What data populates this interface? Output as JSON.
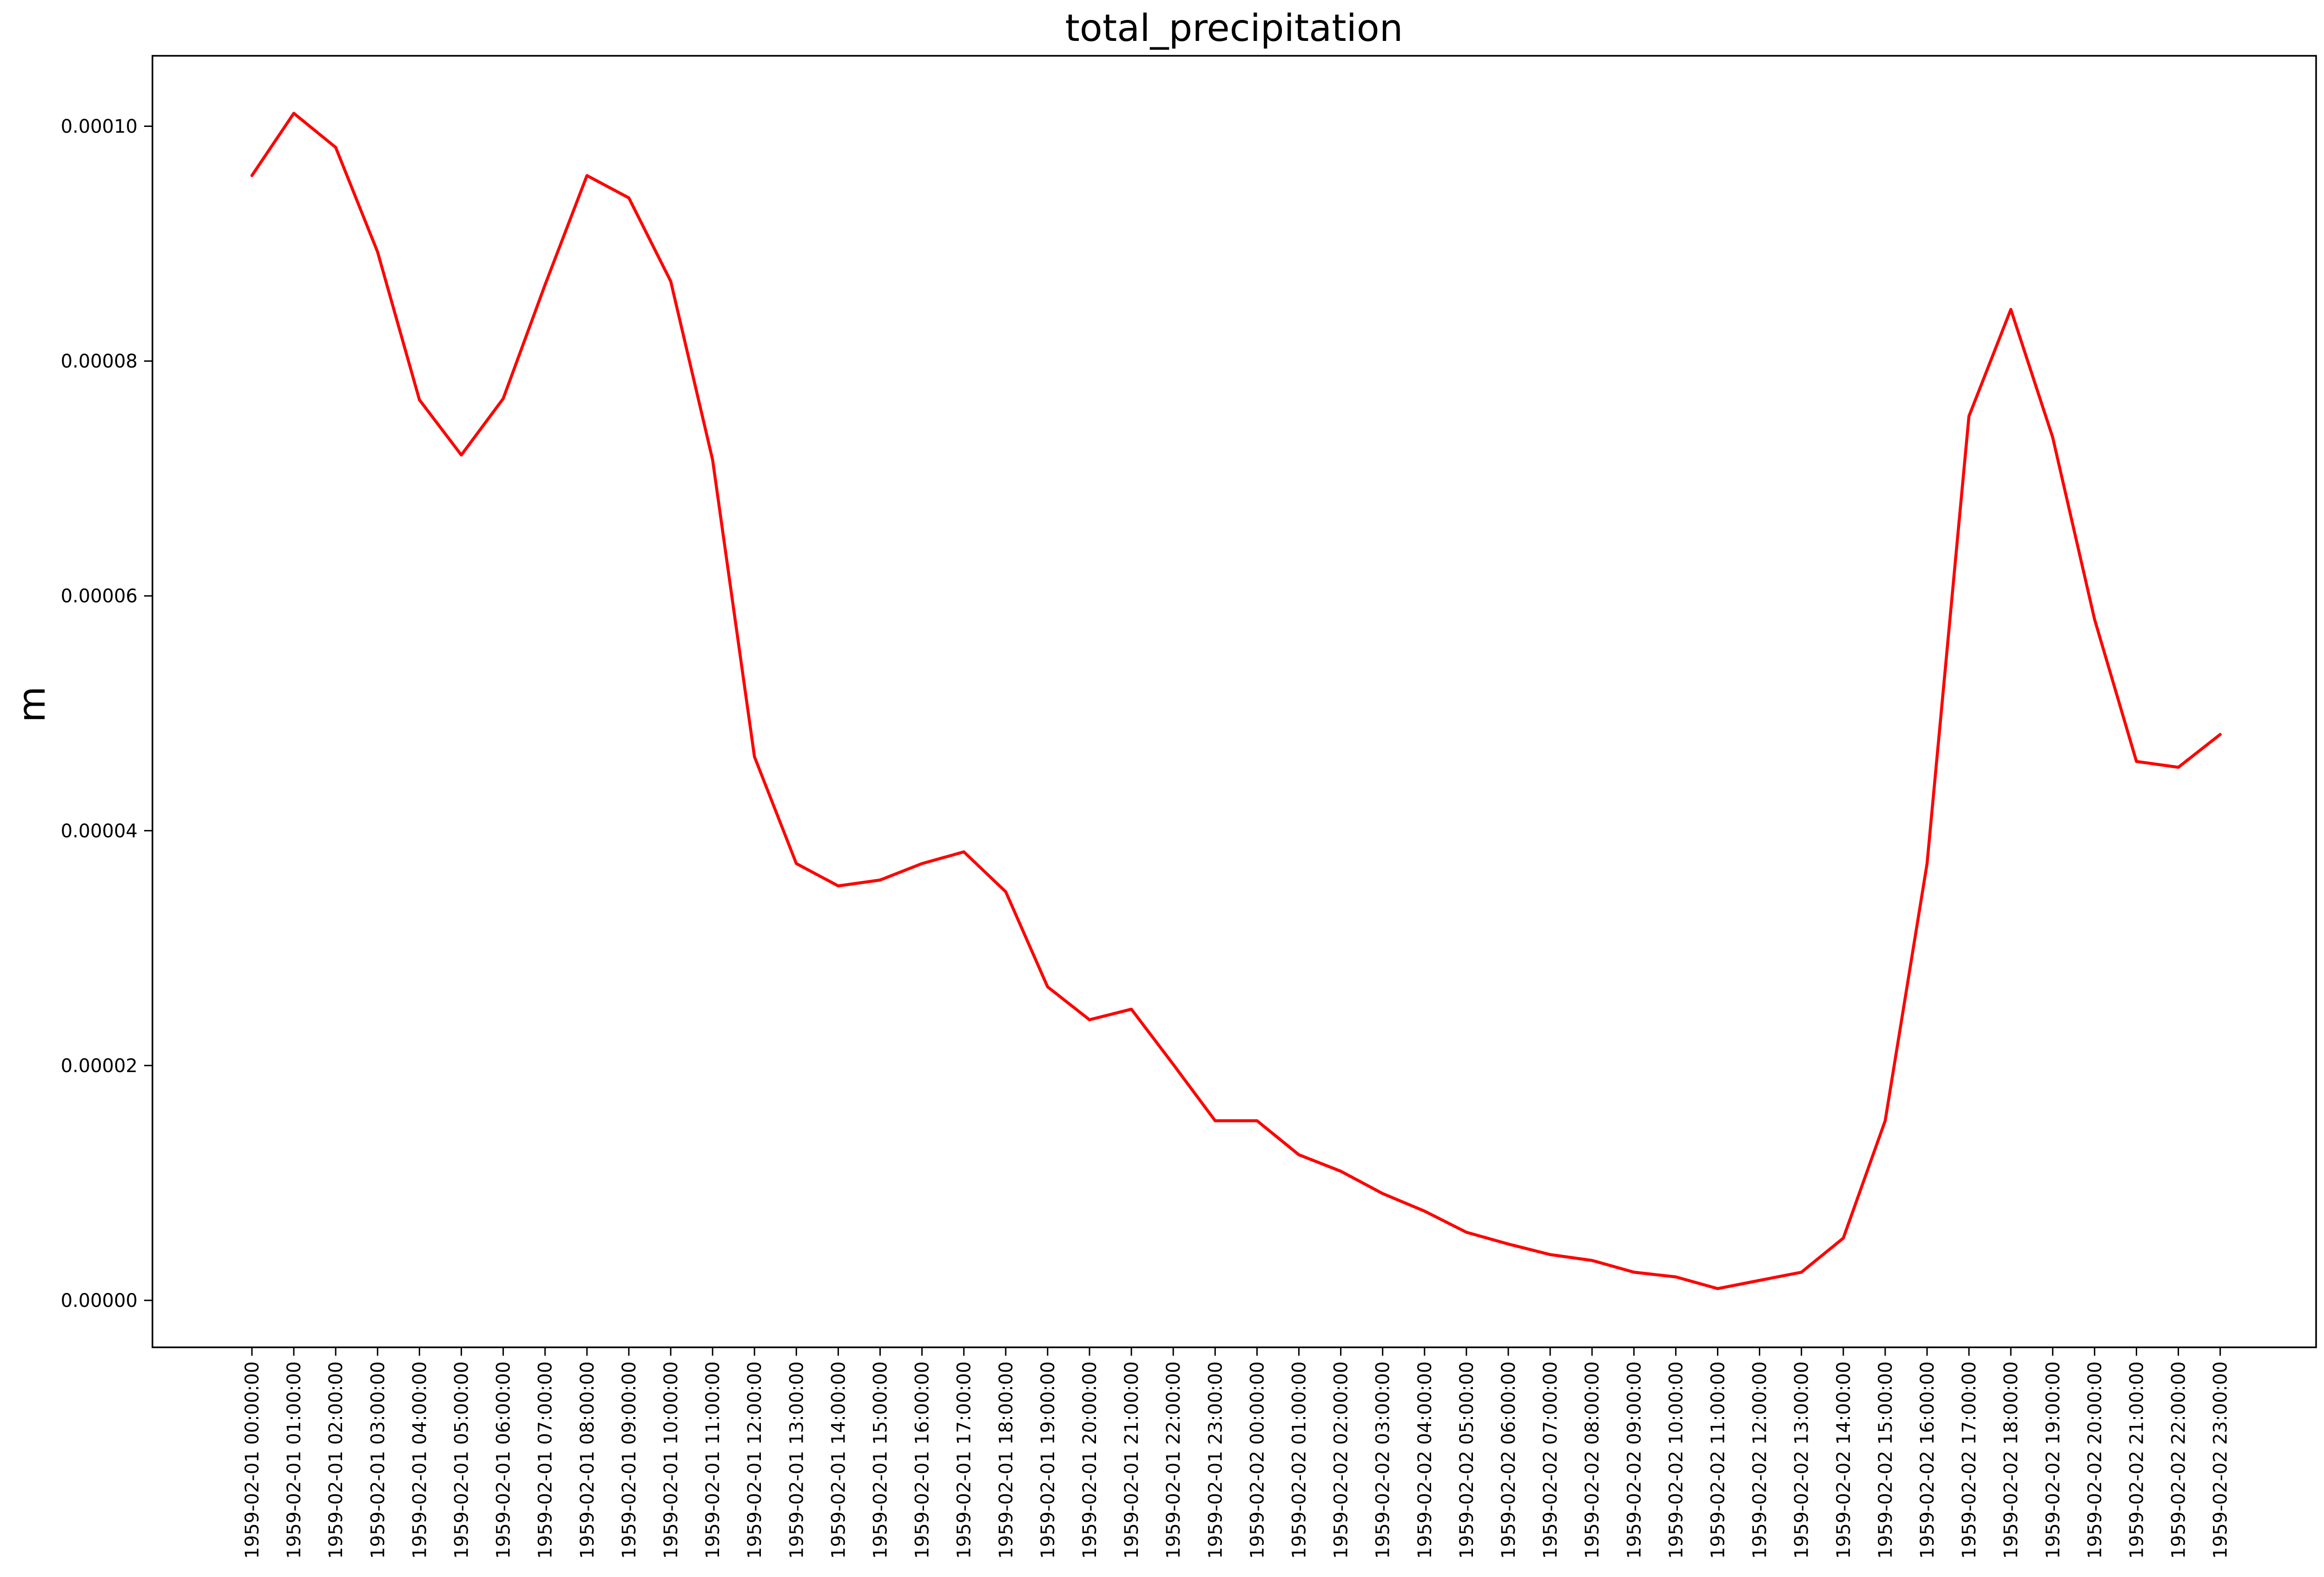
{
  "chart_data": {
    "type": "line",
    "title": "total_precipitation",
    "xlabel": "",
    "ylabel": "m",
    "ylim": [
      -4e-06,
      0.000106
    ],
    "yticks": [
      0.0,
      2e-05,
      4e-05,
      6e-05,
      8e-05,
      0.0001
    ],
    "ytick_labels": [
      "0.00000",
      "0.00002",
      "0.00004",
      "0.00006",
      "0.00008",
      "0.00010"
    ],
    "grid": false,
    "x": [
      "1959-02-01 00:00:00",
      "1959-02-01 01:00:00",
      "1959-02-01 02:00:00",
      "1959-02-01 03:00:00",
      "1959-02-01 04:00:00",
      "1959-02-01 05:00:00",
      "1959-02-01 06:00:00",
      "1959-02-01 07:00:00",
      "1959-02-01 08:00:00",
      "1959-02-01 09:00:00",
      "1959-02-01 10:00:00",
      "1959-02-01 11:00:00",
      "1959-02-01 12:00:00",
      "1959-02-01 13:00:00",
      "1959-02-01 14:00:00",
      "1959-02-01 15:00:00",
      "1959-02-01 16:00:00",
      "1959-02-01 17:00:00",
      "1959-02-01 18:00:00",
      "1959-02-01 19:00:00",
      "1959-02-01 20:00:00",
      "1959-02-01 21:00:00",
      "1959-02-01 22:00:00",
      "1959-02-01 23:00:00",
      "1959-02-02 00:00:00",
      "1959-02-02 01:00:00",
      "1959-02-02 02:00:00",
      "1959-02-02 03:00:00",
      "1959-02-02 04:00:00",
      "1959-02-02 05:00:00",
      "1959-02-02 06:00:00",
      "1959-02-02 07:00:00",
      "1959-02-02 08:00:00",
      "1959-02-02 09:00:00",
      "1959-02-02 10:00:00",
      "1959-02-02 11:00:00",
      "1959-02-02 12:00:00",
      "1959-02-02 13:00:00",
      "1959-02-02 14:00:00",
      "1959-02-02 15:00:00",
      "1959-02-02 16:00:00",
      "1959-02-02 17:00:00",
      "1959-02-02 18:00:00",
      "1959-02-02 19:00:00",
      "1959-02-02 20:00:00",
      "1959-02-02 21:00:00",
      "1959-02-02 22:00:00",
      "1959-02-02 23:00:00"
    ],
    "series": [
      {
        "color": "#ff0000",
        "values": [
          9.58e-05,
          0.0001011,
          9.82e-05,
          8.93e-05,
          7.67e-05,
          7.2e-05,
          7.68e-05,
          8.65e-05,
          9.58e-05,
          9.39e-05,
          8.68e-05,
          7.16e-05,
          4.63e-05,
          3.72e-05,
          3.53e-05,
          3.58e-05,
          3.72e-05,
          3.82e-05,
          3.48e-05,
          2.67e-05,
          2.39e-05,
          2.48e-05,
          2.01e-05,
          1.53e-05,
          1.53e-05,
          1.24e-05,
          1.1e-05,
          9.1e-06,
          7.6e-06,
          5.8e-06,
          4.8e-06,
          3.9e-06,
          3.4e-06,
          2.4e-06,
          2e-06,
          1e-06,
          1.7e-06,
          2.4e-06,
          5.3e-06,
          1.53e-05,
          3.72e-05,
          7.53e-05,
          8.44e-05,
          7.35e-05,
          5.8e-05,
          4.59e-05,
          4.54e-05,
          4.82e-05
        ]
      }
    ]
  }
}
